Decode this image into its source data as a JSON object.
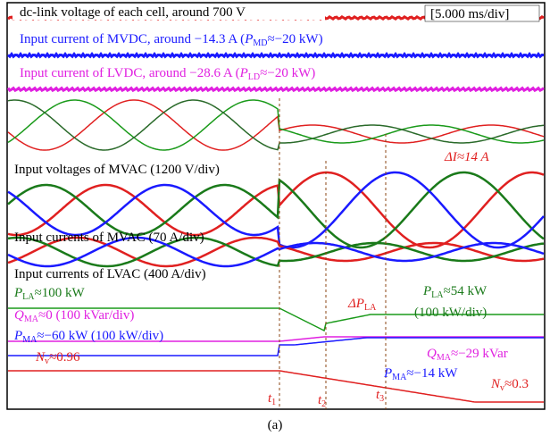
{
  "scope": {
    "timebase": "[5.000 ms/div]",
    "dc_link": "dc-link voltage of each cell, around 700 V",
    "mvdc": [
      "Input current of MVDC, around −14.3 A  (",
      "P",
      "MD",
      "≈−20 kW)"
    ],
    "lvdc": [
      "Input current of LVDC, around −28.6 A  (",
      "P",
      "LD",
      "≈−20 kW)"
    ],
    "mvac_v": "Input voltages of MVAC (1200 V/div)",
    "delta_i": "ΔI≈14 A",
    "mvac_i": "Input currents of MVAC (70 A/div)",
    "lvac_i": "Input currents of LVAC (400 A/div)",
    "delta_p": [
      "ΔP",
      "LA"
    ],
    "pla_after": [
      "P",
      "LA",
      "≈54 kW"
    ],
    "pla_div": "(100 kW/div)",
    "pla_before": [
      "P",
      "LA",
      "≈100 kW"
    ],
    "qma_before": [
      "Q",
      "MA",
      "≈0 (100 kVar/div)"
    ],
    "pma_before": [
      "P",
      "MA",
      "≈−60 kW (100 kW/div)"
    ],
    "qma_after": [
      "Q",
      "MA",
      "≈−29 kVar"
    ],
    "pma_after": [
      "P",
      "MA",
      "≈−14 kW"
    ],
    "nv_before": [
      "N",
      "v",
      "≈0.96"
    ],
    "nv_after": [
      "N",
      "v",
      "≈0.3"
    ],
    "t1": [
      "t",
      "1"
    ],
    "t2": [
      "t",
      "2"
    ],
    "t3": [
      "t",
      "3"
    ],
    "caption": "(a)"
  }
}
